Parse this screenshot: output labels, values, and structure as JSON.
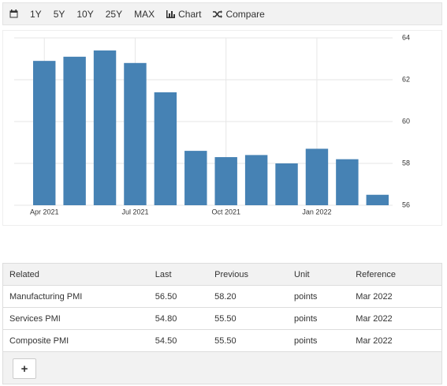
{
  "toolbar": {
    "ranges": [
      "1Y",
      "5Y",
      "10Y",
      "25Y",
      "MAX"
    ],
    "chart": "Chart",
    "compare": "Compare"
  },
  "chart_data": {
    "type": "bar",
    "categories": [
      "Apr 2021",
      null,
      null,
      "Jul 2021",
      null,
      null,
      "Oct 2021",
      null,
      null,
      "Jan 2022",
      null,
      null
    ],
    "values": [
      62.9,
      63.1,
      63.4,
      62.8,
      61.4,
      58.6,
      58.3,
      58.4,
      58.0,
      58.7,
      58.2,
      56.5
    ],
    "color": "#4682b4",
    "ylim": [
      56,
      64
    ],
    "yticks": [
      56,
      58,
      60,
      62,
      64
    ],
    "grid": true
  },
  "table": {
    "columns": [
      "Related",
      "Last",
      "Previous",
      "Unit",
      "Reference"
    ],
    "rows": [
      [
        "Manufacturing PMI",
        "56.50",
        "58.20",
        "points",
        "Mar 2022"
      ],
      [
        "Services PMI",
        "54.80",
        "55.50",
        "points",
        "Mar 2022"
      ],
      [
        "Composite PMI",
        "54.50",
        "55.50",
        "points",
        "Mar 2022"
      ]
    ],
    "add_button": "+"
  }
}
